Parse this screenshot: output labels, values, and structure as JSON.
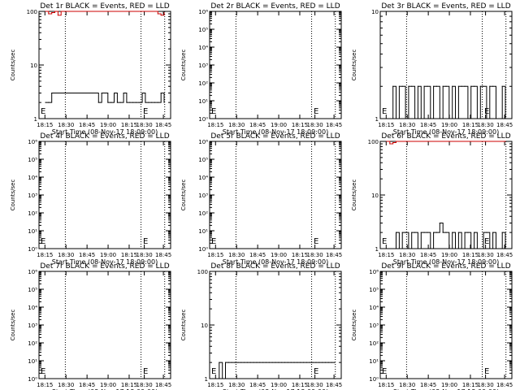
{
  "figure": {
    "xlabel": "Start Time (08-Nov-17 18:09:00)",
    "ylabel": "Counts/sec",
    "x_tick_labels": [
      "18:15",
      "18:30",
      "18:45",
      "19:00",
      "18:15",
      "18:30",
      "18:45"
    ],
    "colors": {
      "events": "#000000",
      "lld": "#cc0000"
    }
  },
  "chart_data": [
    {
      "type": "line",
      "title": "Det 1r BLACK = Events, RED = LLD",
      "yscale": "log",
      "ylim": [
        1,
        100
      ],
      "y_tick_labels": [
        "1",
        "10",
        "100"
      ],
      "annotation": "E",
      "series": [
        {
          "name": "Events",
          "values": [
            2,
            2,
            3,
            3,
            3,
            3,
            3,
            3,
            3,
            3,
            3,
            3,
            3,
            3,
            3,
            3,
            3,
            2,
            3,
            3,
            2,
            2,
            3,
            2,
            2,
            3,
            2,
            2,
            2,
            2,
            2,
            3,
            2,
            2,
            2,
            2,
            2,
            3,
            2
          ]
        },
        {
          "name": "LLD",
          "values": [
            100,
            90,
            95,
            100,
            85,
            100,
            100,
            100,
            100,
            100,
            100,
            100,
            100,
            100,
            100,
            100,
            100,
            100,
            100,
            100,
            100,
            100,
            100,
            100,
            100,
            100,
            100,
            100,
            100,
            100,
            100,
            100,
            100,
            100,
            100,
            100,
            90,
            85,
            95
          ]
        }
      ]
    },
    {
      "type": "line",
      "title": "Det 2r BLACK = Events, RED = LLD",
      "yscale": "log",
      "ylim": [
        1,
        1000000
      ],
      "y_tick_labels": [
        "10⁰",
        "10¹",
        "10²",
        "10³",
        "10⁴",
        "10⁵",
        "10⁶"
      ],
      "annotation": "E",
      "series": []
    },
    {
      "type": "line",
      "title": "Det 3r BLACK = Events, RED = LLD",
      "yscale": "log",
      "ylim": [
        1,
        10
      ],
      "y_tick_labels": [
        "1",
        "10"
      ],
      "annotation": "E",
      "series": [
        {
          "name": "Events",
          "values": [
            1,
            1,
            2,
            1,
            2,
            2,
            1,
            2,
            2,
            1,
            2,
            1,
            2,
            2,
            1,
            2,
            2,
            1,
            2,
            2,
            1,
            2,
            1,
            2,
            2,
            2,
            1,
            2,
            2,
            1,
            2,
            2,
            1,
            2,
            2,
            1,
            1,
            2,
            1
          ]
        }
      ]
    },
    {
      "type": "line",
      "title": "Det 4r BLACK = Events, RED = LLD",
      "yscale": "log",
      "ylim": [
        1,
        1000000
      ],
      "y_tick_labels": [
        "10⁰",
        "10¹",
        "10²",
        "10³",
        "10⁴",
        "10⁵",
        "10⁶"
      ],
      "annotation": "E",
      "series": []
    },
    {
      "type": "line",
      "title": "Det 5r BLACK = Events, RED = LLD",
      "yscale": "log",
      "ylim": [
        1,
        1000000
      ],
      "y_tick_labels": [
        "10⁰",
        "10¹",
        "10²",
        "10³",
        "10⁴",
        "10⁵",
        "10⁶"
      ],
      "annotation": "E",
      "series": []
    },
    {
      "type": "line",
      "title": "Det 6r BLACK = Events, RED = LLD",
      "yscale": "log",
      "ylim": [
        1,
        100
      ],
      "y_tick_labels": [
        "1",
        "10",
        "100"
      ],
      "annotation": "E",
      "series": [
        {
          "name": "Events",
          "values": [
            1,
            1,
            1,
            2,
            1,
            2,
            2,
            1,
            2,
            2,
            1,
            2,
            2,
            2,
            1,
            2,
            2,
            3,
            2,
            2,
            1,
            2,
            1,
            2,
            1,
            2,
            2,
            1,
            2,
            1,
            1,
            2,
            2,
            1,
            2,
            1,
            1,
            2,
            1
          ]
        },
        {
          "name": "LLD",
          "values": [
            100,
            90,
            95,
            100,
            100,
            100,
            100,
            100,
            100,
            100,
            100,
            100,
            100,
            100,
            100,
            100,
            100,
            100,
            100,
            100,
            100,
            100,
            100,
            100,
            100,
            100,
            100,
            100,
            100,
            100,
            100,
            100,
            100,
            100,
            100,
            100,
            100,
            100,
            100
          ]
        }
      ]
    },
    {
      "type": "line",
      "title": "Det 7r BLACK = Events, RED = LLD",
      "yscale": "log",
      "ylim": [
        1,
        1000000
      ],
      "y_tick_labels": [
        "10⁰",
        "10¹",
        "10²",
        "10³",
        "10⁴",
        "10⁵",
        "10⁶"
      ],
      "annotation": "E",
      "series": []
    },
    {
      "type": "line",
      "title": "Det 8r BLACK = Events, RED = LLD",
      "yscale": "log",
      "ylim": [
        1,
        100
      ],
      "y_tick_labels": [
        "1",
        "10",
        "100"
      ],
      "annotation": "E",
      "series": [
        {
          "name": "Events",
          "values": [
            1,
            2,
            1,
            2,
            2,
            2,
            2,
            2,
            2,
            2,
            2,
            2,
            2,
            2,
            2,
            2,
            2,
            2,
            2,
            2,
            2,
            2,
            2,
            2,
            2,
            2,
            2,
            2,
            2,
            2,
            2,
            2,
            2,
            2,
            2,
            2,
            2,
            2,
            2
          ]
        }
      ]
    },
    {
      "type": "line",
      "title": "Det 9r BLACK = Events, RED = LLD",
      "yscale": "log",
      "ylim": [
        1,
        1000000
      ],
      "y_tick_labels": [
        "10⁰",
        "10¹",
        "10²",
        "10³",
        "10⁴",
        "10⁵",
        "10⁶"
      ],
      "annotation": "E",
      "series": []
    }
  ]
}
